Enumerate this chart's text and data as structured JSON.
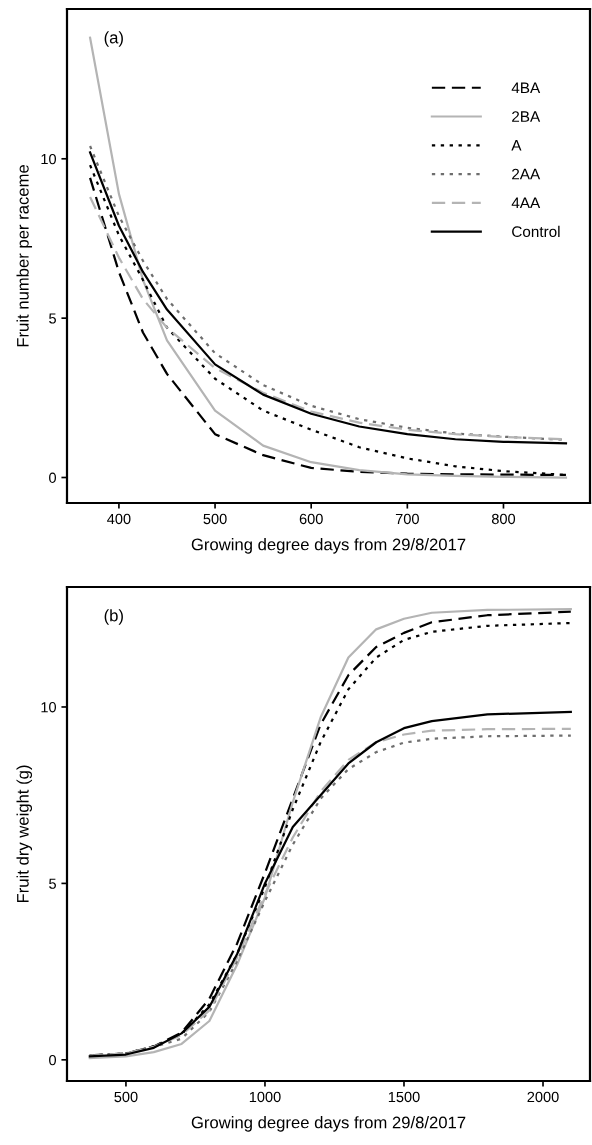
{
  "chart_data": [
    {
      "type": "line",
      "title": "(a)",
      "xlabel": "Growing degree days from 29/8/2017",
      "ylabel": "Fruit number per raceme",
      "xlim": [
        346,
        890
      ],
      "ylim": [
        -0.8,
        14.7
      ],
      "xticks": [
        400,
        500,
        600,
        700,
        800
      ],
      "yticks": [
        0,
        5,
        10
      ],
      "grid": false,
      "legend": "top right",
      "x": [
        370,
        400,
        425,
        450,
        500,
        550,
        600,
        650,
        700,
        750,
        800,
        865
      ],
      "series": [
        {
          "name": "4BA",
          "color": "#000000",
          "line_style": "dashed",
          "values": [
            9.4,
            6.45,
            4.55,
            3.25,
            1.36,
            0.7,
            0.3,
            0.18,
            0.12,
            0.1,
            0.09,
            0.08
          ]
        },
        {
          "name": "2BA",
          "color": "#b4b4b4",
          "line_style": "solid",
          "values": [
            13.8,
            8.9,
            6.2,
            4.3,
            2.1,
            1.0,
            0.48,
            0.23,
            0.1,
            0.05,
            0.02,
            0.0
          ]
        },
        {
          "name": "A",
          "color": "#000000",
          "line_style": "dotted",
          "values": [
            9.8,
            7.6,
            6.2,
            4.7,
            3.1,
            2.1,
            1.5,
            0.95,
            0.6,
            0.35,
            0.2,
            0.08
          ]
        },
        {
          "name": "2AA",
          "color": "#6e6e6e",
          "line_style": "dotted",
          "values": [
            10.4,
            8.2,
            6.8,
            5.6,
            3.9,
            2.9,
            2.25,
            1.83,
            1.56,
            1.38,
            1.28,
            1.18
          ]
        },
        {
          "name": "4AA",
          "color": "#b4b4b4",
          "line_style": "dashed",
          "values": [
            8.8,
            6.9,
            5.6,
            4.7,
            3.43,
            2.66,
            2.07,
            1.72,
            1.5,
            1.36,
            1.27,
            1.2
          ]
        },
        {
          "name": "Control",
          "color": "#000000",
          "line_style": "solid",
          "values": [
            10.2,
            7.9,
            6.45,
            5.27,
            3.55,
            2.6,
            2.0,
            1.6,
            1.36,
            1.2,
            1.12,
            1.07
          ]
        }
      ]
    },
    {
      "type": "line",
      "title": "(b)",
      "xlabel": "Growing degree days from 29/8/2017",
      "ylabel": "Fruit dry weight (g)",
      "xlim": [
        288,
        2169
      ],
      "ylim": [
        -0.6,
        13.4
      ],
      "xticks": [
        500,
        1000,
        1500,
        2000
      ],
      "yticks": [
        0,
        5,
        10
      ],
      "grid": false,
      "legend": false,
      "x": [
        370,
        500,
        600,
        700,
        800,
        900,
        1000,
        1100,
        1200,
        1300,
        1400,
        1500,
        1600,
        1800,
        2100
      ],
      "series": [
        {
          "color": "#000000",
          "line_style": "dashed",
          "values": [
            0.13,
            0.18,
            0.38,
            0.77,
            1.73,
            3.3,
            5.3,
            7.4,
            9.5,
            10.9,
            11.7,
            12.1,
            12.4,
            12.6,
            12.7
          ]
        },
        {
          "color": "#b4b4b4",
          "line_style": "solid",
          "values": [
            0.05,
            0.1,
            0.22,
            0.45,
            1.1,
            2.7,
            4.6,
            7.3,
            9.7,
            11.4,
            12.2,
            12.5,
            12.67,
            12.75,
            12.77
          ]
        },
        {
          "color": "#000000",
          "line_style": "dotted",
          "values": [
            0.12,
            0.18,
            0.38,
            0.72,
            1.57,
            3.0,
            4.9,
            7.1,
            9.0,
            10.5,
            11.4,
            11.9,
            12.13,
            12.3,
            12.38
          ]
        },
        {
          "color": "#6e6e6e",
          "line_style": "dotted",
          "values": [
            0.12,
            0.18,
            0.36,
            0.6,
            1.36,
            2.8,
            4.5,
            6.1,
            7.4,
            8.24,
            8.72,
            8.99,
            9.1,
            9.17,
            9.19
          ]
        },
        {
          "color": "#b4b4b4",
          "line_style": "dashed",
          "values": [
            0.12,
            0.18,
            0.37,
            0.7,
            1.4,
            2.9,
            4.7,
            6.3,
            7.6,
            8.5,
            9.0,
            9.22,
            9.33,
            9.37,
            9.38
          ]
        },
        {
          "color": "#000000",
          "line_style": "solid",
          "values": [
            0.1,
            0.15,
            0.34,
            0.75,
            1.5,
            3.0,
            5.0,
            6.6,
            7.5,
            8.4,
            9.0,
            9.4,
            9.6,
            9.79,
            9.86
          ]
        }
      ]
    }
  ]
}
